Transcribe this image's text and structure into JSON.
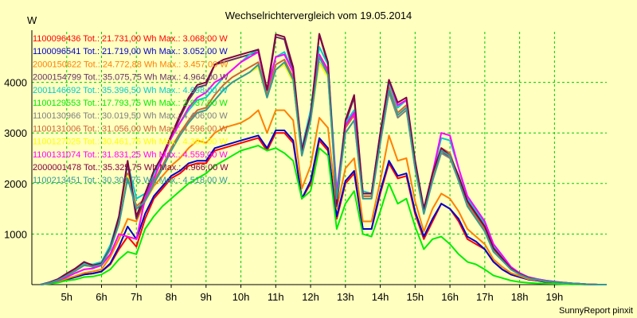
{
  "chart_data": {
    "type": "line",
    "title": "Wechselrichtervergleich vom 19.05.2014",
    "y_unit": "W",
    "footer": "SunnyReport pinxit",
    "ylim": [
      0,
      5000
    ],
    "y_ticks": [
      1000,
      2000,
      3000,
      4000
    ],
    "xlim": [
      4.0,
      20.5
    ],
    "x_ticks": [
      {
        "value": 5,
        "label": "5h"
      },
      {
        "value": 6,
        "label": "6h"
      },
      {
        "value": 7,
        "label": "7h"
      },
      {
        "value": 8,
        "label": "8h"
      },
      {
        "value": 9,
        "label": "9h"
      },
      {
        "value": 10,
        "label": "10h"
      },
      {
        "value": 11,
        "label": "11h"
      },
      {
        "value": 12,
        "label": "12h"
      },
      {
        "value": 13,
        "label": "13h"
      },
      {
        "value": 14,
        "label": "14h"
      },
      {
        "value": 15,
        "label": "15h"
      },
      {
        "value": 16,
        "label": "16h"
      },
      {
        "value": 17,
        "label": "17h"
      },
      {
        "value": 18,
        "label": "18h"
      },
      {
        "value": 19,
        "label": "19h"
      }
    ],
    "grid": true,
    "legend_position": "top-left",
    "x": [
      4.25,
      4.5,
      4.75,
      5.0,
      5.25,
      5.5,
      5.75,
      6.0,
      6.25,
      6.5,
      6.75,
      7.0,
      7.25,
      7.5,
      7.75,
      8.0,
      8.25,
      8.5,
      8.75,
      9.0,
      9.25,
      9.5,
      9.75,
      10.0,
      10.25,
      10.5,
      10.75,
      11.0,
      11.25,
      11.5,
      11.75,
      12.0,
      12.25,
      12.5,
      12.75,
      13.0,
      13.25,
      13.5,
      13.75,
      14.0,
      14.25,
      14.5,
      14.75,
      15.0,
      15.25,
      15.5,
      15.75,
      16.0,
      16.25,
      16.5,
      16.75,
      17.0,
      17.25,
      17.5,
      17.75,
      18.0,
      18.25,
      18.5,
      18.75,
      19.0,
      19.25,
      19.5,
      19.75,
      20.0,
      20.25,
      20.5
    ],
    "series": [
      {
        "name": "1100096436",
        "label": "1100096436 Tot.: 21.731,00 Wh Max.: 3.068,00 W",
        "color": "#ff0000",
        "values": [
          0,
          20,
          60,
          100,
          150,
          200,
          220,
          260,
          400,
          700,
          950,
          750,
          1300,
          1700,
          1900,
          2100,
          2200,
          2350,
          2400,
          2400,
          2650,
          2700,
          2750,
          2800,
          2850,
          2900,
          2650,
          3000,
          3000,
          2800,
          1700,
          2000,
          2850,
          2650,
          1300,
          2000,
          2200,
          1100,
          1100,
          1800,
          2400,
          2100,
          2150,
          1400,
          900,
          1250,
          1600,
          1500,
          1250,
          900,
          800,
          700,
          450,
          300,
          200,
          150,
          100,
          80,
          50,
          40,
          30,
          20,
          10,
          5,
          0,
          0
        ]
      },
      {
        "name": "1100096541",
        "label": "1100096541 Tot.: 21.719,00 Wh Max.: 3.052,00 W",
        "color": "#0000cc",
        "values": [
          0,
          20,
          60,
          100,
          150,
          200,
          220,
          260,
          420,
          750,
          1150,
          900,
          1400,
          1750,
          1950,
          2150,
          2250,
          2400,
          2450,
          2450,
          2700,
          2750,
          2800,
          2850,
          2900,
          2950,
          2700,
          3050,
          3050,
          2850,
          1700,
          2050,
          2900,
          2700,
          1350,
          2050,
          2250,
          1100,
          1100,
          1850,
          2450,
          2150,
          2200,
          1450,
          950,
          1300,
          1600,
          1500,
          1300,
          950,
          850,
          700,
          450,
          300,
          200,
          150,
          100,
          80,
          50,
          40,
          30,
          20,
          10,
          5,
          0,
          0
        ]
      },
      {
        "name": "2000150622",
        "label": "2000150622 Tot.: 24.772,88 Wh Max.: 3.457,00 W",
        "color": "#ff8000",
        "values": [
          0,
          25,
          70,
          120,
          170,
          230,
          260,
          300,
          550,
          900,
          1300,
          1250,
          1650,
          1950,
          2150,
          2350,
          2500,
          2700,
          2850,
          2800,
          3000,
          3100,
          3150,
          3200,
          3300,
          3450,
          3000,
          3450,
          3450,
          3250,
          1900,
          2350,
          3300,
          3100,
          1500,
          2300,
          2500,
          1250,
          1250,
          2050,
          2950,
          2450,
          2500,
          1650,
          1050,
          1500,
          1800,
          1700,
          1450,
          1100,
          950,
          800,
          500,
          350,
          230,
          170,
          110,
          90,
          60,
          45,
          30,
          20,
          10,
          5,
          0,
          0
        ]
      },
      {
        "name": "2000154799",
        "label": "2000154799 Tot.: 35.075,75 Wh Max.: 4.964,00 W",
        "color": "#663366",
        "values": [
          0,
          40,
          100,
          200,
          300,
          400,
          350,
          400,
          700,
          1300,
          2400,
          1300,
          1700,
          2200,
          2500,
          2900,
          3300,
          3650,
          3900,
          3950,
          4350,
          4400,
          4450,
          4500,
          4550,
          4600,
          3800,
          4900,
          4850,
          4200,
          2600,
          3300,
          4950,
          4350,
          1550,
          3200,
          3700,
          1750,
          1750,
          2950,
          4000,
          3550,
          3650,
          2400,
          1450,
          2150,
          2650,
          2500,
          2100,
          1600,
          1350,
          1100,
          700,
          500,
          300,
          200,
          130,
          100,
          70,
          50,
          40,
          25,
          15,
          5,
          0,
          0
        ]
      },
      {
        "name": "2001146692",
        "label": "2001146692 Tot.: 35.396,50 Wh Max.: 4.698,00 W",
        "color": "#00cccc",
        "values": [
          0,
          40,
          110,
          200,
          300,
          420,
          400,
          450,
          780,
          1350,
          2400,
          1700,
          1800,
          2200,
          2500,
          2900,
          3200,
          3450,
          3650,
          3700,
          3900,
          4100,
          4250,
          4400,
          4550,
          4650,
          3800,
          4500,
          4600,
          4200,
          2700,
          3450,
          4700,
          4350,
          1850,
          3200,
          3450,
          1850,
          1800,
          3000,
          4000,
          3500,
          3650,
          2450,
          1500,
          2200,
          2900,
          2850,
          2300,
          1700,
          1450,
          1200,
          750,
          550,
          350,
          220,
          150,
          110,
          80,
          60,
          40,
          25,
          15,
          5,
          0,
          0
        ]
      },
      {
        "name": "1100129553",
        "label": "1100129553 Tot.: 17.793,75 Wh Max.: 2.937,00 W",
        "color": "#00ee00",
        "values": [
          0,
          15,
          40,
          80,
          100,
          150,
          160,
          200,
          300,
          500,
          650,
          600,
          1100,
          1350,
          1550,
          1700,
          1850,
          2000,
          2100,
          2200,
          2350,
          2450,
          2550,
          2650,
          2700,
          2750,
          2650,
          2700,
          2600,
          2450,
          1700,
          1850,
          2700,
          2550,
          1100,
          1600,
          1850,
          1000,
          950,
          1450,
          2000,
          1600,
          1700,
          1150,
          700,
          900,
          950,
          800,
          600,
          450,
          400,
          300,
          180,
          130,
          80,
          50,
          35,
          25,
          20,
          15,
          10,
          5,
          5,
          0,
          0,
          0
        ]
      },
      {
        "name": "1100130966",
        "label": "1100130966 Tot.: 30.019,50 Wh Max.: 4.406,00 W",
        "color": "#808080",
        "values": [
          0,
          35,
          90,
          180,
          270,
          380,
          360,
          400,
          700,
          1200,
          2100,
          1500,
          1650,
          2000,
          2300,
          2650,
          2950,
          3200,
          3400,
          3450,
          3650,
          3850,
          4000,
          4100,
          4200,
          4300,
          3700,
          4250,
          4350,
          4000,
          2550,
          3250,
          4400,
          4100,
          1700,
          3000,
          3250,
          1700,
          1700,
          2800,
          3800,
          3300,
          3450,
          2300,
          1400,
          2050,
          2600,
          2500,
          2050,
          1550,
          1300,
          1050,
          650,
          480,
          300,
          200,
          130,
          100,
          70,
          50,
          35,
          25,
          15,
          5,
          0,
          0
        ]
      },
      {
        "name": "1100131006",
        "label": "1100131006 Tot.: 31.056,00 Wh Max.: 4.596,00 W",
        "color": "#cc6633",
        "values": [
          0,
          35,
          95,
          185,
          280,
          390,
          370,
          410,
          720,
          1250,
          2200,
          1550,
          1700,
          2050,
          2350,
          2700,
          3000,
          3250,
          3450,
          3500,
          3750,
          3950,
          4100,
          4200,
          4300,
          4400,
          3750,
          4350,
          4450,
          4100,
          2600,
          3300,
          4550,
          4200,
          1750,
          3100,
          3350,
          1750,
          1750,
          2850,
          3900,
          3400,
          3550,
          2350,
          1450,
          2100,
          2700,
          2600,
          2100,
          1600,
          1350,
          1100,
          700,
          500,
          300,
          200,
          130,
          100,
          70,
          50,
          35,
          25,
          15,
          5,
          0,
          0
        ]
      },
      {
        "name": "1100127025",
        "label": "1100127025 Tot.: 30.461,75 Wh Max.: 4.384,00 W",
        "color": "#ffff00",
        "values": [
          0,
          35,
          90,
          180,
          270,
          380,
          360,
          400,
          700,
          1200,
          2150,
          1500,
          1650,
          2000,
          2300,
          2650,
          2950,
          3200,
          3400,
          3450,
          3650,
          3850,
          4000,
          4100,
          4200,
          4300,
          3700,
          4250,
          4350,
          4000,
          2550,
          3250,
          4380,
          4100,
          1700,
          3000,
          3250,
          1700,
          1700,
          2800,
          3850,
          3350,
          3500,
          2300,
          1400,
          2050,
          2650,
          2550,
          2050,
          1550,
          1300,
          1050,
          650,
          480,
          300,
          200,
          130,
          100,
          70,
          50,
          35,
          25,
          15,
          5,
          0,
          0
        ]
      },
      {
        "name": "1100131074",
        "label": "1100131074 Tot.: 31.831,25 Wh Max.: 4.559,00 W",
        "color": "#ff00ff",
        "values": [
          0,
          30,
          80,
          150,
          230,
          300,
          320,
          380,
          600,
          1000,
          950,
          900,
          1700,
          2100,
          2500,
          2900,
          3200,
          3500,
          3700,
          3800,
          4000,
          4100,
          4250,
          4400,
          4500,
          4600,
          3850,
          4500,
          4550,
          4200,
          2650,
          3350,
          4550,
          4250,
          1800,
          3150,
          3400,
          1800,
          1800,
          2950,
          4050,
          3550,
          3650,
          2400,
          1450,
          2200,
          3000,
          2950,
          2300,
          1750,
          1500,
          1250,
          800,
          580,
          350,
          230,
          150,
          110,
          80,
          60,
          40,
          25,
          15,
          5,
          0,
          0
        ]
      },
      {
        "name": "2000001478",
        "label": "2000001478 Tot.: 35.325,75 Wh Max.: 4.966,00 W",
        "color": "#800040",
        "values": [
          0,
          45,
          110,
          220,
          320,
          450,
          380,
          420,
          720,
          1350,
          2450,
          1350,
          1800,
          2250,
          2550,
          2950,
          3350,
          3700,
          3950,
          4000,
          4350,
          4450,
          4500,
          4550,
          4600,
          4650,
          3850,
          4950,
          4900,
          4300,
          2650,
          3350,
          4960,
          4400,
          1600,
          3250,
          3750,
          1800,
          1800,
          3000,
          4050,
          3600,
          3700,
          2450,
          1500,
          2200,
          2700,
          2550,
          2150,
          1650,
          1400,
          1150,
          720,
          520,
          320,
          210,
          140,
          100,
          70,
          50,
          40,
          25,
          15,
          5,
          0,
          0
        ]
      },
      {
        "name": "1100213451",
        "label": "1100213451 Tot.: 30.301,75 Wh Max.: 4.518,00 W",
        "color": "#339999",
        "values": [
          0,
          35,
          90,
          180,
          270,
          380,
          360,
          400,
          700,
          1200,
          2100,
          1500,
          1650,
          2000,
          2300,
          2650,
          2950,
          3200,
          3400,
          3450,
          3650,
          3850,
          4000,
          4100,
          4200,
          4350,
          3700,
          4250,
          4400,
          4050,
          2550,
          3250,
          4500,
          4150,
          1700,
          3000,
          3250,
          1700,
          1700,
          2800,
          3850,
          3350,
          3500,
          2300,
          1400,
          2050,
          2650,
          2550,
          2050,
          1550,
          1300,
          1050,
          650,
          480,
          300,
          200,
          130,
          100,
          70,
          50,
          35,
          25,
          15,
          5,
          0,
          0
        ]
      }
    ]
  }
}
